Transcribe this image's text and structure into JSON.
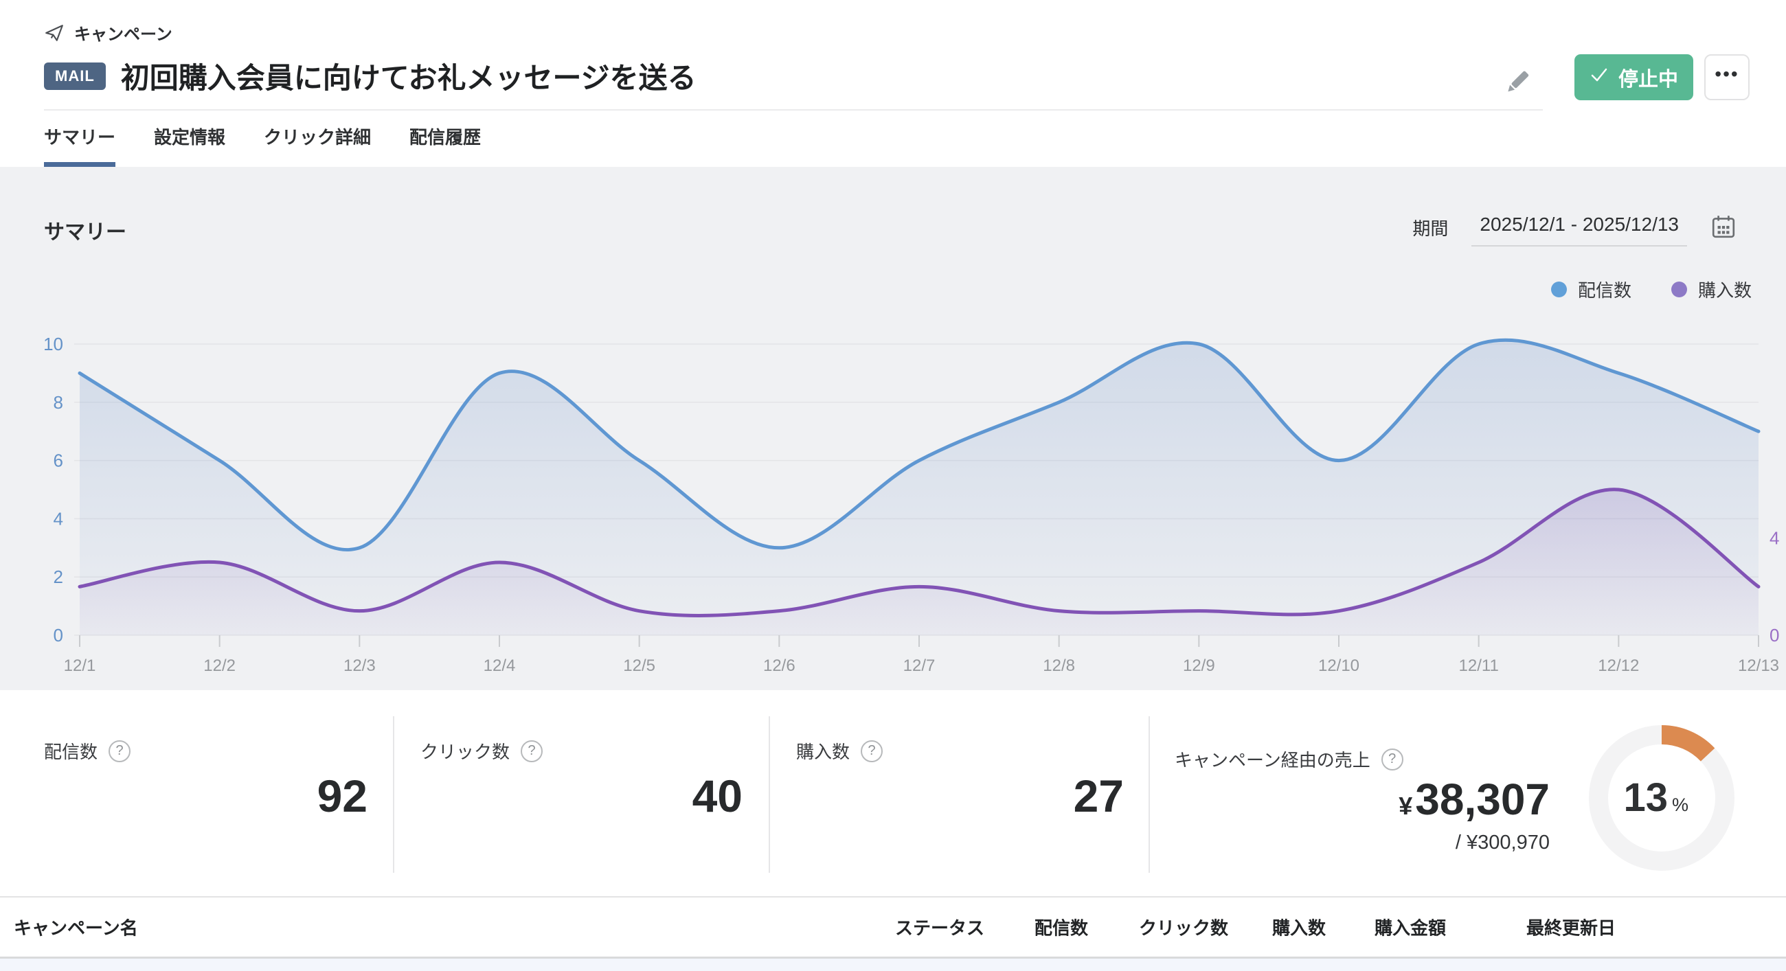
{
  "breadcrumb": {
    "label": "キャンペーン"
  },
  "header": {
    "badge": "MAIL",
    "title": "初回購入会員に向けてお礼メッセージを送る",
    "status_button": "停止中",
    "more_button": "•••"
  },
  "tabs": [
    {
      "label": "サマリー",
      "active": true
    },
    {
      "label": "設定情報",
      "active": false
    },
    {
      "label": "クリック詳細",
      "active": false
    },
    {
      "label": "配信履歴",
      "active": false
    }
  ],
  "summary": {
    "heading": "サマリー",
    "period_label": "期間",
    "period_value": "2025/12/1 - 2025/12/13",
    "legend": [
      {
        "label": "配信数",
        "color": "#61a0d8"
      },
      {
        "label": "購入数",
        "color": "#8d7ac6"
      }
    ]
  },
  "chart_data": {
    "type": "area",
    "x": [
      "12/1",
      "12/2",
      "12/3",
      "12/4",
      "12/5",
      "12/6",
      "12/7",
      "12/8",
      "12/9",
      "12/10",
      "12/11",
      "12/12",
      "12/13"
    ],
    "series": [
      {
        "name": "配信数",
        "axis": "left",
        "color": "#5f97d2",
        "fill_from": "rgba(110,145,200,0.24)",
        "fill_to": "rgba(110,145,200,0.03)",
        "values": [
          9,
          6,
          3,
          9,
          6,
          3,
          6,
          8,
          10,
          6,
          10,
          9,
          7
        ]
      },
      {
        "name": "購入数",
        "axis": "right",
        "color": "#8153b5",
        "fill_from": "rgba(124,84,176,0.18)",
        "fill_to": "rgba(124,84,176,0.03)",
        "values": [
          2,
          3,
          1,
          3,
          1,
          1,
          2,
          1,
          1,
          1,
          3,
          6,
          2
        ]
      }
    ],
    "left_axis": {
      "min": 0,
      "max": 10,
      "ticks": [
        10,
        8,
        6,
        4,
        2,
        0
      ],
      "color": "#6492c8"
    },
    "right_axis": {
      "min": 0,
      "max": 12,
      "ticks": [
        4,
        0
      ],
      "color": "#9a6fc6"
    },
    "x_label_color": "#95989c",
    "grid": true,
    "legend_position": "top-right"
  },
  "stats": [
    {
      "label": "配信数",
      "value": "92"
    },
    {
      "label": "クリック数",
      "value": "40"
    },
    {
      "label": "購入数",
      "value": "27"
    },
    {
      "label": "キャンペーン経由の売上",
      "currency_symbol": "¥",
      "amount": "38,307",
      "denominator": "/ ¥300,970",
      "percent": 13,
      "percent_suffix": "%",
      "donut_color": "#dc8a50",
      "donut_track_color": "#f3f3f4"
    }
  ],
  "table": {
    "columns": [
      "キャンペーン名",
      "ステータス",
      "配信数",
      "クリック数",
      "購入数",
      "購入金額",
      "最終更新日"
    ]
  },
  "help_icon": "?"
}
